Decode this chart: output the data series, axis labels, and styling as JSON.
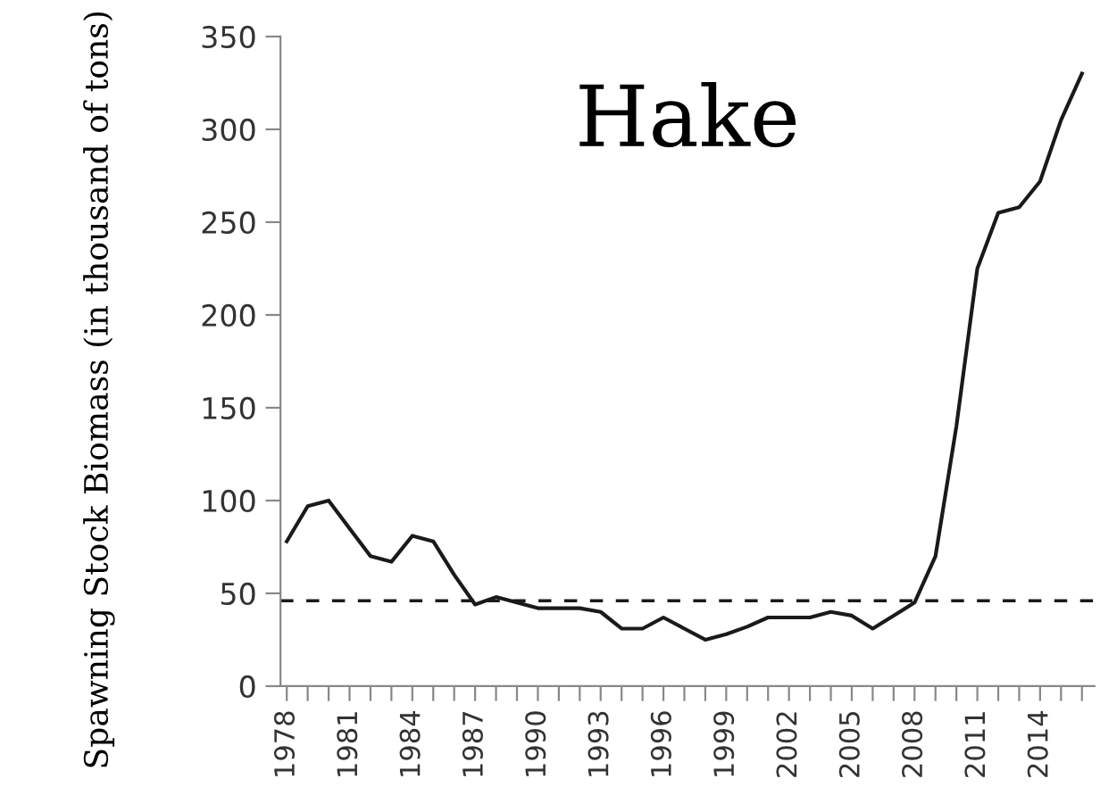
{
  "chart_data": {
    "type": "line",
    "title": "Hake",
    "ylabel": "Spawning Stock Biomass (in thousand of tons)",
    "x": [
      1978,
      1979,
      1980,
      1981,
      1982,
      1983,
      1984,
      1985,
      1986,
      1987,
      1988,
      1989,
      1990,
      1991,
      1992,
      1993,
      1994,
      1995,
      1996,
      1997,
      1998,
      1999,
      2000,
      2001,
      2002,
      2003,
      2004,
      2005,
      2006,
      2007,
      2008,
      2009,
      2010,
      2011,
      2012,
      2013,
      2014,
      2015,
      2016
    ],
    "series": [
      {
        "color": "#1a1a1a",
        "values": [
          78,
          97,
          100,
          85,
          70,
          67,
          81,
          78,
          60,
          44,
          48,
          45,
          42,
          42,
          42,
          40,
          31,
          31,
          37,
          31,
          25,
          28,
          32,
          37,
          37,
          37,
          40,
          38,
          31,
          38,
          45,
          70,
          140,
          225,
          255,
          258,
          272,
          305,
          330
        ]
      }
    ],
    "ref_lines": [
      {
        "axis": "y",
        "value": 46,
        "color": "#1a1a1a",
        "line_style": "dashed"
      }
    ],
    "ylim": [
      0,
      350
    ],
    "yticks": [
      0,
      50,
      100,
      150,
      200,
      250,
      300,
      350
    ],
    "xlim": [
      1977.7,
      2016.6
    ],
    "xticks": [
      1978,
      {
        "value": 1979,
        "label": null
      },
      {
        "value": 1980,
        "label": null
      },
      1981,
      {
        "value": 1982,
        "label": null
      },
      {
        "value": 1983,
        "label": null
      },
      1984,
      {
        "value": 1985,
        "label": null
      },
      {
        "value": 1986,
        "label": null
      },
      1987,
      {
        "value": 1988,
        "label": null
      },
      {
        "value": 1989,
        "label": null
      },
      1990,
      {
        "value": 1991,
        "label": null
      },
      {
        "value": 1992,
        "label": null
      },
      1993,
      {
        "value": 1994,
        "label": null
      },
      {
        "value": 1995,
        "label": null
      },
      1996,
      {
        "value": 1997,
        "label": null
      },
      {
        "value": 1998,
        "label": null
      },
      1999,
      {
        "value": 2000,
        "label": null
      },
      {
        "value": 2001,
        "label": null
      },
      2002,
      {
        "value": 2003,
        "label": null
      },
      {
        "value": 2004,
        "label": null
      },
      2005,
      {
        "value": 2006,
        "label": null
      },
      {
        "value": 2007,
        "label": null
      },
      2008,
      {
        "value": 2009,
        "label": null
      },
      {
        "value": 2010,
        "label": null
      },
      2011,
      {
        "value": 2012,
        "label": null
      },
      {
        "value": 2013,
        "label": null
      },
      2014,
      {
        "value": 2015,
        "label": null
      },
      {
        "value": 2016,
        "label": null
      }
    ],
    "grid": false,
    "legend": false,
    "marker": "none",
    "line_style": "solid"
  }
}
